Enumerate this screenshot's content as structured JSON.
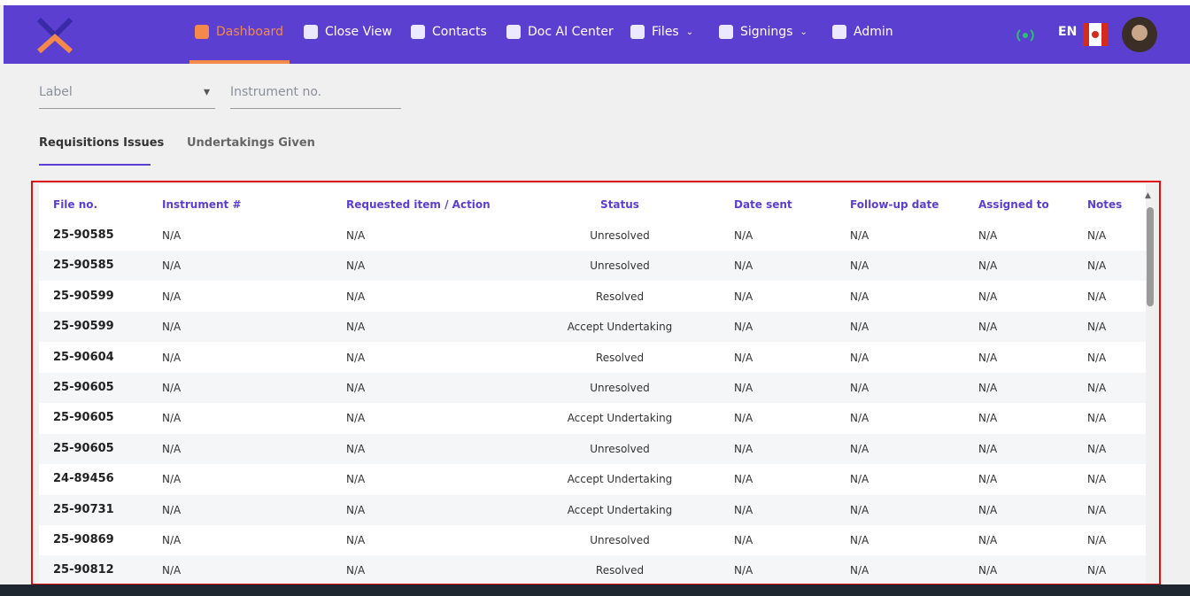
{
  "nav": {
    "items": [
      "Dashboard",
      "Close View",
      "Contacts",
      "Doc AI Center",
      "Files",
      "Signings",
      "Admin"
    ],
    "language": "EN"
  },
  "filters": {
    "label": "Label",
    "instrument": "Instrument no."
  },
  "tabs": [
    "Requisitions Issues",
    "Undertakings Given"
  ],
  "table": {
    "headers": [
      "File no.",
      "Instrument #",
      "Requested item / Action",
      "Status",
      "Date sent",
      "Follow-up date",
      "Assigned to",
      "Notes"
    ],
    "rows": [
      [
        "25-90585",
        "N/A",
        "N/A",
        "Unresolved",
        "N/A",
        "N/A",
        "N/A",
        "N/A"
      ],
      [
        "25-90585",
        "N/A",
        "N/A",
        "Unresolved",
        "N/A",
        "N/A",
        "N/A",
        "N/A"
      ],
      [
        "25-90599",
        "N/A",
        "N/A",
        "Resolved",
        "N/A",
        "N/A",
        "N/A",
        "N/A"
      ],
      [
        "25-90599",
        "N/A",
        "N/A",
        "Accept Undertaking",
        "N/A",
        "N/A",
        "N/A",
        "N/A"
      ],
      [
        "25-90604",
        "N/A",
        "N/A",
        "Resolved",
        "N/A",
        "N/A",
        "N/A",
        "N/A"
      ],
      [
        "25-90605",
        "N/A",
        "N/A",
        "Unresolved",
        "N/A",
        "N/A",
        "N/A",
        "N/A"
      ],
      [
        "25-90605",
        "N/A",
        "N/A",
        "Accept Undertaking",
        "N/A",
        "N/A",
        "N/A",
        "N/A"
      ],
      [
        "25-90605",
        "N/A",
        "N/A",
        "Unresolved",
        "N/A",
        "N/A",
        "N/A",
        "N/A"
      ],
      [
        "24-89456",
        "N/A",
        "N/A",
        "Accept Undertaking",
        "N/A",
        "N/A",
        "N/A",
        "N/A"
      ],
      [
        "25-90731",
        "N/A",
        "N/A",
        "Accept Undertaking",
        "N/A",
        "N/A",
        "N/A",
        "N/A"
      ],
      [
        "25-90869",
        "N/A",
        "N/A",
        "Unresolved",
        "N/A",
        "N/A",
        "N/A",
        "N/A"
      ],
      [
        "25-90812",
        "N/A",
        "N/A",
        "Resolved",
        "N/A",
        "N/A",
        "N/A",
        "N/A"
      ]
    ]
  }
}
